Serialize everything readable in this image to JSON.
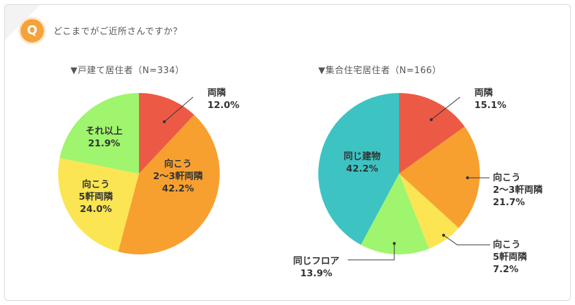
{
  "question": {
    "badge": "Q",
    "text": "どこまでがご近所さんですか？"
  },
  "colors": {
    "red": "#ec5a45",
    "orange": "#f7a030",
    "yellow": "#fbe552",
    "green": "#9ff56d",
    "teal": "#3ec3c3",
    "accent": "#f4a23b"
  },
  "chart_data": [
    {
      "type": "pie",
      "title": "▼戸建て居住者（N=334）",
      "slices": [
        {
          "label": [
            "両隣"
          ],
          "value": 12.0,
          "display": "12.0%",
          "color": "#ec5a45"
        },
        {
          "label": [
            "向こう",
            "2～3軒両隣"
          ],
          "value": 42.2,
          "display": "42.2%",
          "color": "#f7a030"
        },
        {
          "label": [
            "向こう",
            "5軒両隣"
          ],
          "value": 24.0,
          "display": "24.0%",
          "color": "#fbe552"
        },
        {
          "label": [
            "それ以上"
          ],
          "value": 21.9,
          "display": "21.9%",
          "color": "#9ff56d"
        }
      ]
    },
    {
      "type": "pie",
      "title": "▼集合住宅居住者（N=166）",
      "slices": [
        {
          "label": [
            "両隣"
          ],
          "value": 15.1,
          "display": "15.1%",
          "color": "#ec5a45"
        },
        {
          "label": [
            "向こう",
            "2～3軒両隣"
          ],
          "value": 21.7,
          "display": "21.7%",
          "color": "#f7a030"
        },
        {
          "label": [
            "向こう",
            "5軒両隣"
          ],
          "value": 7.2,
          "display": "7.2%",
          "color": "#fbe552"
        },
        {
          "label": [
            "同じフロア"
          ],
          "value": 13.9,
          "display": "13.9%",
          "color": "#9ff56d"
        },
        {
          "label": [
            "同じ建物"
          ],
          "value": 42.2,
          "display": "42.2%",
          "color": "#3ec3c3"
        }
      ]
    }
  ]
}
